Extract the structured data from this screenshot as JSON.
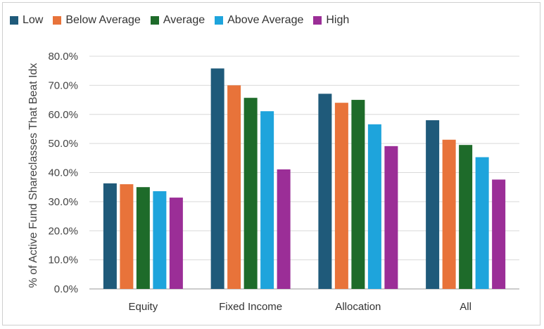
{
  "chart_data": {
    "type": "bar",
    "title": "",
    "ylabel": "% of Active Fund Shareclasses That Beat Idx",
    "xlabel": "",
    "ylim": [
      0,
      80
    ],
    "yticks": [
      "0.0%",
      "10.0%",
      "20.0%",
      "30.0%",
      "40.0%",
      "50.0%",
      "60.0%",
      "70.0%",
      "80.0%"
    ],
    "grid": "horizontal",
    "legend_position": "top-left",
    "categories": [
      "Equity",
      "Fixed Income",
      "Allocation",
      "All"
    ],
    "series": [
      {
        "name": "Low",
        "color": "#1f5a7a",
        "values": [
          36.3,
          75.8,
          67.1,
          58.0
        ]
      },
      {
        "name": "Below Average",
        "color": "#e8733a",
        "values": [
          36.0,
          70.0,
          64.0,
          51.3
        ]
      },
      {
        "name": "Average",
        "color": "#1e6b2a",
        "values": [
          35.0,
          65.7,
          65.0,
          49.5
        ]
      },
      {
        "name": "Above Average",
        "color": "#1ea4dc",
        "values": [
          33.6,
          61.1,
          56.6,
          45.3
        ]
      },
      {
        "name": "High",
        "color": "#9b2e97",
        "values": [
          31.4,
          41.1,
          49.1,
          37.6
        ]
      }
    ]
  }
}
